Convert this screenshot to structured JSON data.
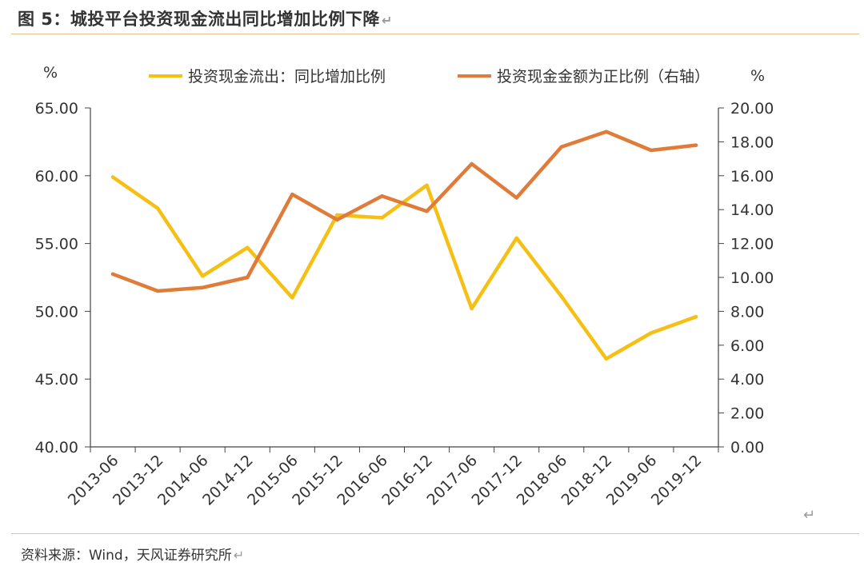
{
  "figure_title": "图 5：城投平台投资现金流出同比增加比例下降",
  "source_note": "资料来源：Wind，天风证券研究所",
  "return_glyph": "↵",
  "colors": {
    "series_left": "#F5BF14",
    "series_right": "#E07B39",
    "axis": "#444444",
    "rule": "#E5C08A"
  },
  "chart_data": {
    "type": "line",
    "title": "",
    "xlabel": "",
    "y_left": {
      "label": "%",
      "min": 40,
      "max": 65,
      "step": 5,
      "decimals": 2
    },
    "y_right": {
      "label": "%",
      "min": 0,
      "max": 20,
      "step": 2,
      "decimals": 2
    },
    "grid": false,
    "legend_position": "top",
    "categories": [
      "2013-06",
      "2013-12",
      "2014-06",
      "2014-12",
      "2015-06",
      "2015-12",
      "2016-06",
      "2016-12",
      "2017-06",
      "2017-12",
      "2018-06",
      "2018-12",
      "2019-06",
      "2019-12"
    ],
    "series": [
      {
        "name": "投资现金流出：同比增加比例",
        "axis": "left",
        "values": [
          59.9,
          57.6,
          52.6,
          54.7,
          51.0,
          57.1,
          56.9,
          59.3,
          50.2,
          55.4,
          51.1,
          46.5,
          48.4,
          49.6
        ]
      },
      {
        "name": "投资现金金额为正比例（右轴）",
        "axis": "right",
        "values": [
          10.2,
          9.2,
          9.4,
          10.0,
          14.9,
          13.4,
          14.8,
          13.9,
          16.7,
          14.7,
          17.7,
          18.6,
          17.5,
          17.8
        ]
      }
    ]
  }
}
